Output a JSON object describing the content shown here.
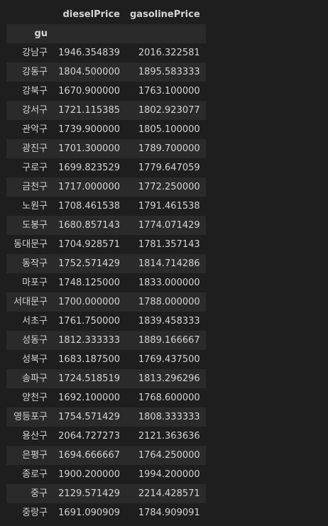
{
  "table": {
    "columns": [
      "dieselPrice",
      "gasolinePrice"
    ],
    "index_name": "gu",
    "rows": [
      {
        "gu": "강남구",
        "dieselPrice": "1946.354839",
        "gasolinePrice": "2016.322581"
      },
      {
        "gu": "강동구",
        "dieselPrice": "1804.500000",
        "gasolinePrice": "1895.583333"
      },
      {
        "gu": "강북구",
        "dieselPrice": "1670.900000",
        "gasolinePrice": "1763.100000"
      },
      {
        "gu": "강서구",
        "dieselPrice": "1721.115385",
        "gasolinePrice": "1802.923077"
      },
      {
        "gu": "관악구",
        "dieselPrice": "1739.900000",
        "gasolinePrice": "1805.100000"
      },
      {
        "gu": "광진구",
        "dieselPrice": "1701.300000",
        "gasolinePrice": "1789.700000"
      },
      {
        "gu": "구로구",
        "dieselPrice": "1699.823529",
        "gasolinePrice": "1779.647059"
      },
      {
        "gu": "금천구",
        "dieselPrice": "1717.000000",
        "gasolinePrice": "1772.250000"
      },
      {
        "gu": "노원구",
        "dieselPrice": "1708.461538",
        "gasolinePrice": "1791.461538"
      },
      {
        "gu": "도봉구",
        "dieselPrice": "1680.857143",
        "gasolinePrice": "1774.071429"
      },
      {
        "gu": "동대문구",
        "dieselPrice": "1704.928571",
        "gasolinePrice": "1781.357143"
      },
      {
        "gu": "동작구",
        "dieselPrice": "1752.571429",
        "gasolinePrice": "1814.714286"
      },
      {
        "gu": "마포구",
        "dieselPrice": "1748.125000",
        "gasolinePrice": "1833.000000"
      },
      {
        "gu": "서대문구",
        "dieselPrice": "1700.000000",
        "gasolinePrice": "1788.000000"
      },
      {
        "gu": "서초구",
        "dieselPrice": "1761.750000",
        "gasolinePrice": "1839.458333"
      },
      {
        "gu": "성동구",
        "dieselPrice": "1812.333333",
        "gasolinePrice": "1889.166667"
      },
      {
        "gu": "성북구",
        "dieselPrice": "1683.187500",
        "gasolinePrice": "1769.437500"
      },
      {
        "gu": "송파구",
        "dieselPrice": "1724.518519",
        "gasolinePrice": "1813.296296"
      },
      {
        "gu": "양천구",
        "dieselPrice": "1692.100000",
        "gasolinePrice": "1768.600000"
      },
      {
        "gu": "영등포구",
        "dieselPrice": "1754.571429",
        "gasolinePrice": "1808.333333"
      },
      {
        "gu": "용산구",
        "dieselPrice": "2064.727273",
        "gasolinePrice": "2121.363636"
      },
      {
        "gu": "은평구",
        "dieselPrice": "1694.666667",
        "gasolinePrice": "1764.250000"
      },
      {
        "gu": "종로구",
        "dieselPrice": "1900.200000",
        "gasolinePrice": "1994.200000"
      },
      {
        "gu": "중구",
        "dieselPrice": "2129.571429",
        "gasolinePrice": "2214.428571"
      },
      {
        "gu": "중랑구",
        "dieselPrice": "1691.090909",
        "gasolinePrice": "1784.909091"
      }
    ]
  }
}
